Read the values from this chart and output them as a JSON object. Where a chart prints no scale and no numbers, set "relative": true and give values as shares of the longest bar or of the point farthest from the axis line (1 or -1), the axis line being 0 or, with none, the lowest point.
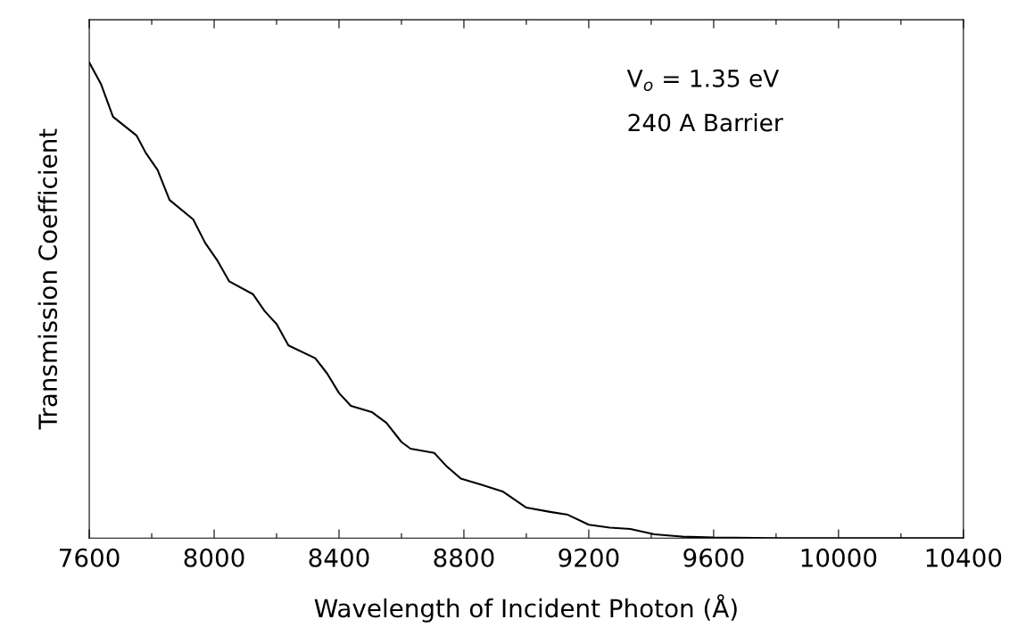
{
  "chart_data": {
    "type": "line",
    "relative": true,
    "xlabel": "Wavelength of Incident Photon (Å)",
    "ylabel": "Transmission Coefficient",
    "annotations": [
      "V$_{o}$ = 1.35 eV",
      "240 A Barrier"
    ],
    "xlim": [
      7600,
      10400
    ],
    "xticks": [
      7600,
      {
        "value": 7800,
        "label": null
      },
      8000,
      {
        "value": 8200,
        "label": null
      },
      8400,
      {
        "value": 8600,
        "label": null
      },
      8800,
      {
        "value": 9000,
        "label": null
      },
      9200,
      {
        "value": 9400,
        "label": null
      },
      9600,
      {
        "value": 9800,
        "label": null
      },
      10000,
      {
        "value": 10200,
        "label": null
      },
      10400
    ],
    "series": [
      {
        "color": "#000000",
        "x": [
          7600,
          7638,
          7676,
          7752,
          7781,
          7819,
          7857,
          7933,
          7971,
          8009,
          8048,
          8124,
          8162,
          8200,
          8238,
          8324,
          8362,
          8400,
          8438,
          8505,
          8552,
          8600,
          8629,
          8705,
          8743,
          8790,
          8857,
          8924,
          9000,
          9076,
          9133,
          9200,
          9267,
          9333,
          9410,
          9500,
          9600,
          9800,
          10000,
          10400
        ],
        "values": [
          1.0,
          0.954,
          0.886,
          0.846,
          0.81,
          0.774,
          0.711,
          0.67,
          0.621,
          0.585,
          0.54,
          0.513,
          0.477,
          0.45,
          0.405,
          0.378,
          0.346,
          0.305,
          0.278,
          0.265,
          0.242,
          0.202,
          0.188,
          0.179,
          0.152,
          0.125,
          0.112,
          0.098,
          0.064,
          0.055,
          0.049,
          0.028,
          0.022,
          0.019,
          0.008,
          0.003,
          0.001,
          0,
          0,
          0
        ]
      }
    ]
  }
}
